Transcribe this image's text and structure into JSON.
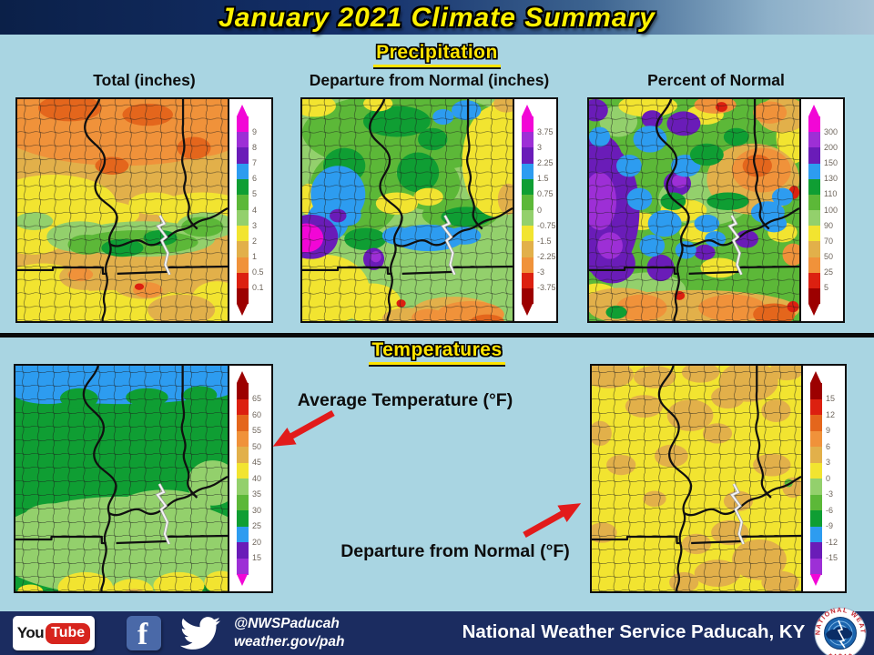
{
  "header": {
    "title": "January 2021 Climate Summary"
  },
  "precipitation": {
    "heading": "Precipitation",
    "panels": [
      {
        "title": "Total (inches)",
        "scale": "precip",
        "legend_labels": [
          "9",
          "8",
          "7",
          "6",
          "5",
          "4",
          "3",
          "2",
          "1",
          "0.5",
          "0.1"
        ]
      },
      {
        "title": "Departure from Normal (inches)",
        "scale": "precip",
        "legend_labels": [
          "3.75",
          "3",
          "2.25",
          "1.5",
          "0.75",
          "0",
          "-0.75",
          "-1.5",
          "-2.25",
          "-3",
          "-3.75"
        ]
      },
      {
        "title": "Percent of Normal",
        "scale": "precip",
        "legend_labels": [
          "300",
          "200",
          "150",
          "130",
          "110",
          "100",
          "90",
          "70",
          "50",
          "25",
          "5"
        ]
      }
    ]
  },
  "temperatures": {
    "heading": "Temperatures",
    "panels": [
      {
        "label": "Average Temperature (°F)",
        "scale": "temp",
        "legend_labels": [
          "65",
          "60",
          "55",
          "50",
          "45",
          "40",
          "35",
          "30",
          "25",
          "20",
          "15"
        ]
      },
      {
        "label": "Departure from Normal (°F)",
        "scale": "temp",
        "legend_labels": [
          "15",
          "12",
          "9",
          "6",
          "3",
          "0",
          "-3",
          "-6",
          "-9",
          "-12",
          "-15"
        ]
      }
    ]
  },
  "footer": {
    "youtube_you": "You",
    "youtube_tube": "Tube",
    "twitter_handle": "@NWSPaducah",
    "website": "weather.gov/pah",
    "org_name": "National Weather Service Paducah, KY",
    "nws_logo_text": "NATIONAL WEATHER SERVICE"
  },
  "palette": {
    "magenta": "#f206d6",
    "purple": "#9d2fd6",
    "violet": "#6a1cb8",
    "blue": "#2d9cf0",
    "dark_green": "#0f9e33",
    "green": "#5cb838",
    "light_green": "#93d06c",
    "yellow": "#f2e430",
    "gold": "#e2b04a",
    "orange": "#f0923a",
    "dark_orange": "#e4661c",
    "red": "#dc2010",
    "dark_red": "#9c0000"
  },
  "legend_scales": {
    "precip": {
      "colors": [
        "magenta",
        "purple",
        "violet",
        "blue",
        "dark_green",
        "green",
        "light_green",
        "yellow",
        "gold",
        "orange",
        "red",
        "dark_red"
      ],
      "arrow_top": "magenta",
      "arrow_bottom": "dark_red"
    },
    "temp": {
      "colors": [
        "dark_red",
        "red",
        "dark_orange",
        "orange",
        "gold",
        "yellow",
        "light_green",
        "green",
        "dark_green",
        "blue",
        "violet",
        "purple"
      ],
      "arrow_top": "dark_red",
      "arrow_bottom": "magenta"
    }
  },
  "accent": {
    "arrow_red": "#e21b1b",
    "body_bg": "#a9d5e2",
    "footer_bg": "#1b2c60"
  }
}
